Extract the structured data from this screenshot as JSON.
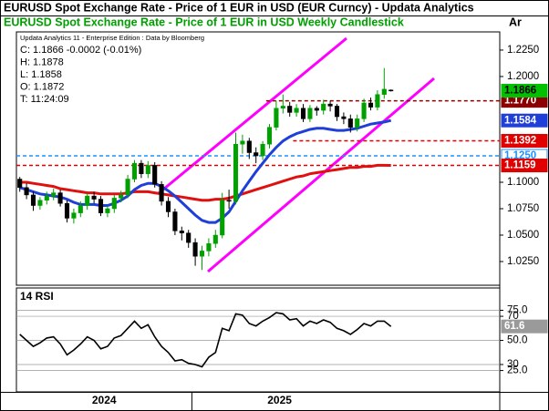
{
  "header": {
    "title": "EURUSD Spot Exchange Rate - Price of 1 EUR in USD (EUR Curncy) -  Updata Analytics",
    "axis_header": "Ar"
  },
  "chart_data": [
    {
      "type": "candlestick",
      "title": "EURUSD Spot Exchange Rate - Price of 1 EUR in USD Weekly Candlestick",
      "source": "Updata Analytics 11 - Enterprise Edition : Data by Bloomberg",
      "info": [
        "C: 1.1866  -0.0002 (-0.01%)",
        "H: 1.1878",
        "L: 1.1858",
        "O: 1.1872",
        "T: 11:24:09"
      ],
      "categories": [
        "2024",
        null,
        null,
        null,
        null,
        null,
        null,
        null,
        null,
        null,
        null,
        null,
        null,
        null,
        null,
        null,
        null,
        null,
        null,
        null,
        null,
        null,
        null,
        null,
        null,
        null,
        "2025",
        null,
        null,
        null,
        null,
        null,
        null,
        null,
        null,
        null,
        null,
        null,
        null,
        null,
        null,
        null,
        null,
        null,
        null,
        null,
        null,
        null,
        null,
        null,
        null,
        null,
        null,
        null,
        null,
        null
      ],
      "open": [
        1.103,
        1.095,
        1.088,
        1.078,
        1.083,
        1.087,
        1.09,
        1.08,
        1.066,
        1.071,
        1.078,
        1.087,
        1.084,
        1.071,
        1.075,
        1.085,
        1.088,
        1.103,
        1.118,
        1.108,
        1.116,
        1.098,
        1.082,
        1.072,
        1.054,
        1.052,
        1.043,
        1.03,
        1.035,
        1.042,
        1.05,
        1.083,
        1.082,
        1.136,
        1.139,
        1.128,
        1.125,
        1.136,
        1.152,
        1.17,
        1.172,
        1.166,
        1.17,
        1.16,
        1.17,
        1.168,
        1.174,
        1.172,
        1.162,
        1.16,
        1.152,
        1.16,
        1.175,
        1.171,
        1.183,
        1.1872
      ],
      "high": [
        1.105,
        1.099,
        1.091,
        1.086,
        1.091,
        1.094,
        1.093,
        1.083,
        1.075,
        1.082,
        1.09,
        1.091,
        1.087,
        1.078,
        1.088,
        1.092,
        1.107,
        1.121,
        1.121,
        1.12,
        1.119,
        1.101,
        1.086,
        1.075,
        1.058,
        1.055,
        1.047,
        1.04,
        1.047,
        1.055,
        1.09,
        1.093,
        1.147,
        1.145,
        1.142,
        1.133,
        1.139,
        1.155,
        1.177,
        1.183,
        1.176,
        1.174,
        1.174,
        1.173,
        1.172,
        1.178,
        1.177,
        1.174,
        1.166,
        1.164,
        1.164,
        1.179,
        1.18,
        1.187,
        1.208,
        1.1878
      ],
      "low": [
        1.091,
        1.084,
        1.073,
        1.074,
        1.079,
        1.083,
        1.077,
        1.062,
        1.061,
        1.067,
        1.074,
        1.08,
        1.068,
        1.067,
        1.071,
        1.081,
        1.085,
        1.1,
        1.104,
        1.104,
        1.095,
        1.078,
        1.067,
        1.05,
        1.045,
        1.038,
        1.021,
        1.017,
        1.03,
        1.038,
        1.047,
        1.075,
        1.079,
        1.127,
        1.122,
        1.118,
        1.121,
        1.132,
        1.149,
        1.165,
        1.162,
        1.162,
        1.157,
        1.157,
        1.163,
        1.164,
        1.167,
        1.158,
        1.155,
        1.147,
        1.148,
        1.157,
        1.168,
        1.168,
        1.179,
        1.1858
      ],
      "close": [
        1.095,
        1.088,
        1.078,
        1.083,
        1.087,
        1.09,
        1.08,
        1.066,
        1.071,
        1.078,
        1.087,
        1.084,
        1.071,
        1.075,
        1.085,
        1.088,
        1.103,
        1.118,
        1.108,
        1.116,
        1.098,
        1.082,
        1.072,
        1.054,
        1.052,
        1.043,
        1.03,
        1.035,
        1.042,
        1.05,
        1.083,
        1.082,
        1.136,
        1.139,
        1.128,
        1.125,
        1.136,
        1.152,
        1.17,
        1.172,
        1.166,
        1.17,
        1.16,
        1.17,
        1.168,
        1.174,
        1.172,
        1.162,
        1.16,
        1.152,
        1.16,
        1.175,
        1.171,
        1.183,
        1.188,
        1.1866
      ],
      "up_color": "#00a000",
      "down_color": "#000000",
      "last_label_color": "#00c000",
      "moving_averages": [
        {
          "color": "#e01010",
          "values": [
            1.1,
            1.1,
            1.099,
            1.098,
            1.097,
            1.096,
            1.094,
            1.093,
            1.092,
            1.091,
            1.09,
            1.09,
            1.089,
            1.089,
            1.089,
            1.089,
            1.09,
            1.091,
            1.091,
            1.091,
            1.09,
            1.089,
            1.088,
            1.087,
            1.086,
            1.085,
            1.084,
            1.083,
            1.083,
            1.084,
            1.084,
            1.085,
            1.087,
            1.089,
            1.091,
            1.093,
            1.095,
            1.097,
            1.099,
            1.101,
            1.103,
            1.105,
            1.106,
            1.108,
            1.109,
            1.11,
            1.111,
            1.112,
            1.113,
            1.114,
            1.114,
            1.115,
            1.115,
            1.116,
            1.116,
            1.1159
          ]
        },
        {
          "color": "#1f3fd8",
          "label_color": "#1f3fd8",
          "values": [
            1.095,
            1.093,
            1.091,
            1.089,
            1.088,
            1.087,
            1.086,
            1.084,
            1.081,
            1.079,
            1.079,
            1.079,
            1.078,
            1.078,
            1.08,
            1.083,
            1.087,
            1.093,
            1.097,
            1.099,
            1.099,
            1.096,
            1.092,
            1.087,
            1.081,
            1.075,
            1.069,
            1.064,
            1.062,
            1.062,
            1.066,
            1.072,
            1.082,
            1.092,
            1.101,
            1.11,
            1.118,
            1.126,
            1.133,
            1.139,
            1.143,
            1.146,
            1.148,
            1.15,
            1.151,
            1.151,
            1.15,
            1.149,
            1.149,
            1.15,
            1.151,
            1.153,
            1.155,
            1.156,
            1.157,
            1.1584
          ]
        }
      ],
      "levels": [
        {
          "value": 1.177,
          "label": "1.1770",
          "color": "#8b0000",
          "start": 37
        },
        {
          "value": 1.1392,
          "color": "#e00000",
          "start": 41
        },
        {
          "value": 1.125,
          "label": "1.1250",
          "color": "#1e90ff",
          "start": 0
        },
        {
          "value": 1.1159,
          "color": "#e00000",
          "start": 0
        }
      ],
      "ylim": [
        1.0026,
        1.2422
      ],
      "yticks": [
        {
          "value": 1.025,
          "label": "1.0250"
        },
        {
          "value": 1.05,
          "label": "1.0500"
        },
        {
          "value": 1.075,
          "label": "1.0750"
        },
        {
          "value": 1.1,
          "label": "1.1000"
        },
        {
          "value": 1.2,
          "label": "1.2000"
        },
        {
          "value": 1.225,
          "label": "1.2250"
        }
      ]
    },
    {
      "type": "line",
      "title": "14 RSI",
      "color": "#000000",
      "values": [
        55,
        50,
        45,
        48,
        52,
        53,
        47,
        38,
        42,
        47,
        53,
        50,
        43,
        45,
        52,
        54,
        60,
        66,
        60,
        63,
        53,
        45,
        40,
        33,
        34,
        31,
        30,
        28,
        36,
        40,
        60,
        58,
        72,
        71,
        64,
        62,
        66,
        69,
        73,
        72,
        67,
        68,
        62,
        66,
        64,
        67,
        65,
        60,
        58,
        55,
        59,
        64,
        62,
        66,
        66,
        61.6
      ],
      "ylim": [
        7.3,
        93.5
      ],
      "yticks": [
        {
          "value": 25,
          "label": "25.0"
        },
        30,
        {
          "value": 50,
          "label": "50.0"
        },
        70,
        {
          "value": 75,
          "label": "75.0"
        }
      ]
    }
  ]
}
